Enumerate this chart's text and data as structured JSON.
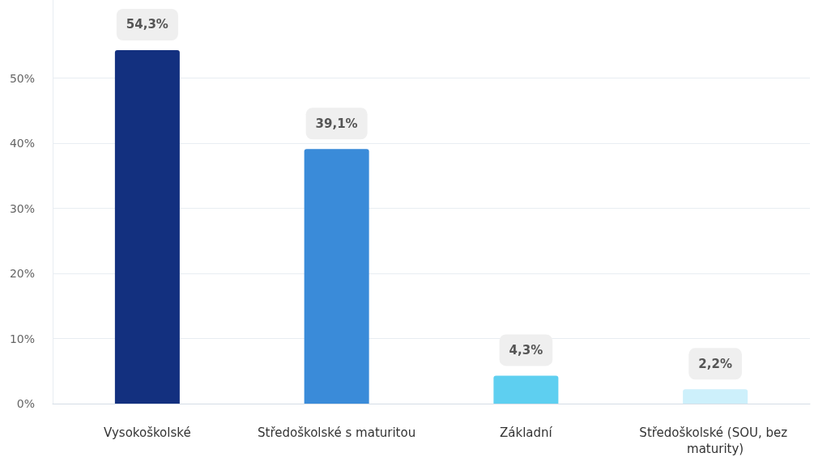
{
  "chart_data": {
    "type": "bar",
    "categories": [
      "Vysokoškolské",
      "Středoškolské s maturitou",
      "Základní",
      "Středoškolské (SOU, bez maturity)"
    ],
    "values": [
      54.3,
      39.1,
      4.3,
      2.2
    ],
    "colors": [
      "#13307f",
      "#3a8bd9",
      "#5ecff0",
      "#cdf0fb"
    ],
    "value_labels": [
      "54,3%",
      "39,1%",
      "4,3%",
      "2,2%"
    ],
    "ylim": [
      0,
      62
    ],
    "yticks": [
      {
        "value": 0,
        "label": "0%"
      },
      {
        "value": 10,
        "label": "10%"
      },
      {
        "value": 20,
        "label": "20%"
      },
      {
        "value": 30,
        "label": "30%"
      },
      {
        "value": 40,
        "label": "40%"
      },
      {
        "value": 50,
        "label": "50%"
      }
    ],
    "grid": "y"
  }
}
